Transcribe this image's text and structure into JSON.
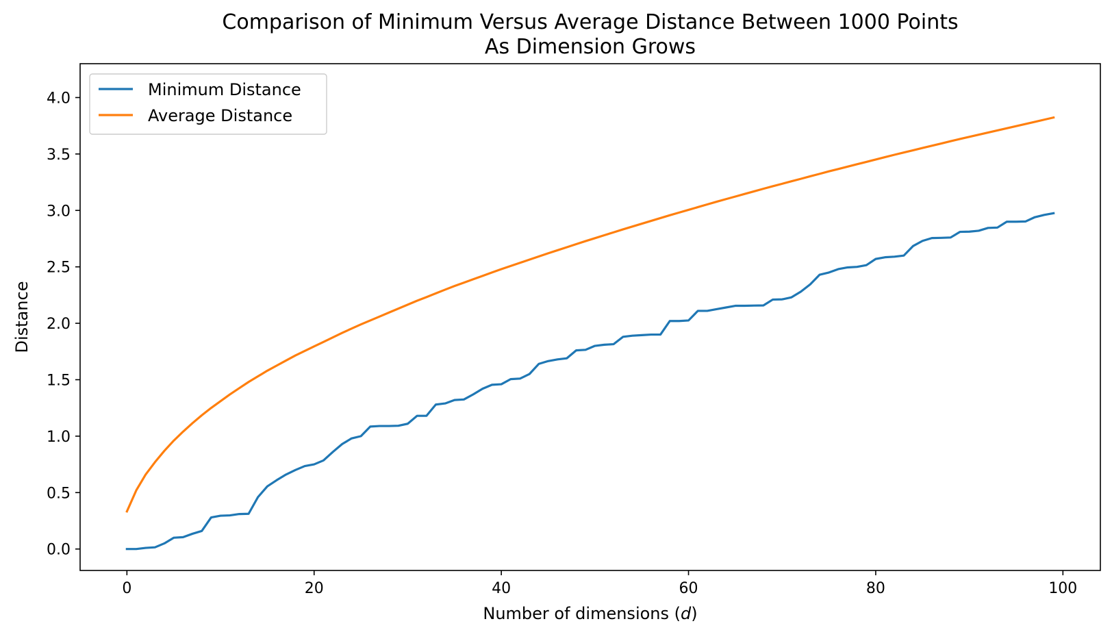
{
  "chart_data": {
    "type": "line",
    "title": "Comparison of Minimum Versus Average Distance Between 1000 Points",
    "subtitle": "As Dimension Grows",
    "xlabel_prefix": "Number of dimensions (",
    "xlabel_var": "d",
    "xlabel_suffix": ")",
    "ylabel": "Distance",
    "xlim": [
      -5,
      104
    ],
    "ylim": [
      -0.19,
      4.3
    ],
    "xticks": [
      0,
      20,
      40,
      60,
      80,
      100
    ],
    "xtick_labels": [
      "0",
      "20",
      "40",
      "60",
      "80",
      "100"
    ],
    "yticks": [
      0.0,
      0.5,
      1.0,
      1.5,
      2.0,
      2.5,
      3.0,
      3.5,
      4.0
    ],
    "ytick_labels": [
      "0.0",
      "0.5",
      "1.0",
      "1.5",
      "2.0",
      "2.5",
      "3.0",
      "3.5",
      "4.0"
    ],
    "grid": false,
    "legend_position": "top-left",
    "series": [
      {
        "name": "Minimum Distance",
        "color": "#1f77b4",
        "x": [
          0,
          1,
          2,
          3,
          4,
          5,
          6,
          7,
          8,
          9,
          10,
          11,
          12,
          13,
          14,
          15,
          16,
          17,
          18,
          19,
          20,
          21,
          22,
          23,
          24,
          25,
          26,
          27,
          28,
          29,
          30,
          31,
          32,
          33,
          34,
          35,
          36,
          37,
          38,
          39,
          40,
          41,
          42,
          43,
          44,
          45,
          46,
          47,
          48,
          49,
          50,
          51,
          52,
          53,
          54,
          55,
          56,
          57,
          58,
          59,
          60,
          61,
          62,
          63,
          64,
          65,
          66,
          67,
          68,
          69,
          70,
          71,
          72,
          73,
          74,
          75,
          76,
          77,
          78,
          79,
          80,
          81,
          82,
          83,
          84,
          85,
          86,
          87,
          88,
          89,
          90,
          91,
          92,
          93,
          94,
          95,
          96,
          97,
          98,
          99
        ],
        "values": [
          0.0,
          0.0,
          0.01,
          0.015,
          0.05,
          0.1,
          0.105,
          0.135,
          0.16,
          0.28,
          0.295,
          0.298,
          0.31,
          0.312,
          0.46,
          0.555,
          0.61,
          0.66,
          0.7,
          0.735,
          0.75,
          0.785,
          0.86,
          0.93,
          0.98,
          1.0,
          1.085,
          1.09,
          1.09,
          1.092,
          1.11,
          1.18,
          1.18,
          1.28,
          1.29,
          1.32,
          1.325,
          1.37,
          1.42,
          1.455,
          1.46,
          1.505,
          1.51,
          1.55,
          1.64,
          1.665,
          1.68,
          1.69,
          1.76,
          1.765,
          1.8,
          1.81,
          1.815,
          1.88,
          1.89,
          1.895,
          1.9,
          1.9,
          2.02,
          2.02,
          2.025,
          2.11,
          2.11,
          2.125,
          2.14,
          2.155,
          2.155,
          2.157,
          2.158,
          2.21,
          2.212,
          2.23,
          2.28,
          2.345,
          2.43,
          2.45,
          2.48,
          2.495,
          2.5,
          2.515,
          2.57,
          2.585,
          2.59,
          2.6,
          2.685,
          2.73,
          2.755,
          2.757,
          2.76,
          2.81,
          2.812,
          2.82,
          2.845,
          2.848,
          2.9,
          2.9,
          2.902,
          2.94,
          2.96,
          2.975
        ]
      },
      {
        "name": "Average Distance",
        "color": "#ff7f0e",
        "x": [
          0,
          1,
          2,
          3,
          4,
          5,
          6,
          7,
          8,
          9,
          10,
          11,
          12,
          13,
          14,
          15,
          16,
          17,
          18,
          19,
          20,
          21,
          22,
          23,
          24,
          25,
          26,
          27,
          28,
          29,
          30,
          31,
          32,
          33,
          34,
          35,
          36,
          37,
          38,
          39,
          40,
          41,
          42,
          43,
          44,
          45,
          46,
          47,
          48,
          49,
          50,
          51,
          52,
          53,
          54,
          55,
          56,
          57,
          58,
          59,
          60,
          61,
          62,
          63,
          64,
          65,
          66,
          67,
          68,
          69,
          70,
          71,
          72,
          73,
          74,
          75,
          76,
          77,
          78,
          79,
          80,
          81,
          82,
          83,
          84,
          85,
          86,
          87,
          88,
          89,
          90,
          91,
          92,
          93,
          94,
          95,
          96,
          97,
          98,
          99
        ],
        "values": [
          0.333,
          0.52,
          0.66,
          0.77,
          0.87,
          0.96,
          1.04,
          1.115,
          1.185,
          1.25,
          1.31,
          1.37,
          1.425,
          1.48,
          1.53,
          1.58,
          1.625,
          1.67,
          1.715,
          1.755,
          1.795,
          1.835,
          1.875,
          1.915,
          1.953,
          1.99,
          2.025,
          2.06,
          2.095,
          2.13,
          2.165,
          2.2,
          2.232,
          2.265,
          2.298,
          2.33,
          2.36,
          2.39,
          2.42,
          2.45,
          2.48,
          2.508,
          2.536,
          2.564,
          2.592,
          2.62,
          2.647,
          2.674,
          2.701,
          2.728,
          2.754,
          2.78,
          2.806,
          2.832,
          2.857,
          2.882,
          2.907,
          2.932,
          2.957,
          2.981,
          3.005,
          3.029,
          3.053,
          3.077,
          3.1,
          3.123,
          3.146,
          3.169,
          3.192,
          3.214,
          3.236,
          3.258,
          3.28,
          3.302,
          3.324,
          3.346,
          3.367,
          3.388,
          3.409,
          3.43,
          3.451,
          3.472,
          3.493,
          3.513,
          3.533,
          3.553,
          3.573,
          3.593,
          3.613,
          3.633,
          3.652,
          3.671,
          3.69,
          3.709,
          3.728,
          3.747,
          3.766,
          3.785,
          3.804,
          3.823
        ]
      }
    ]
  }
}
